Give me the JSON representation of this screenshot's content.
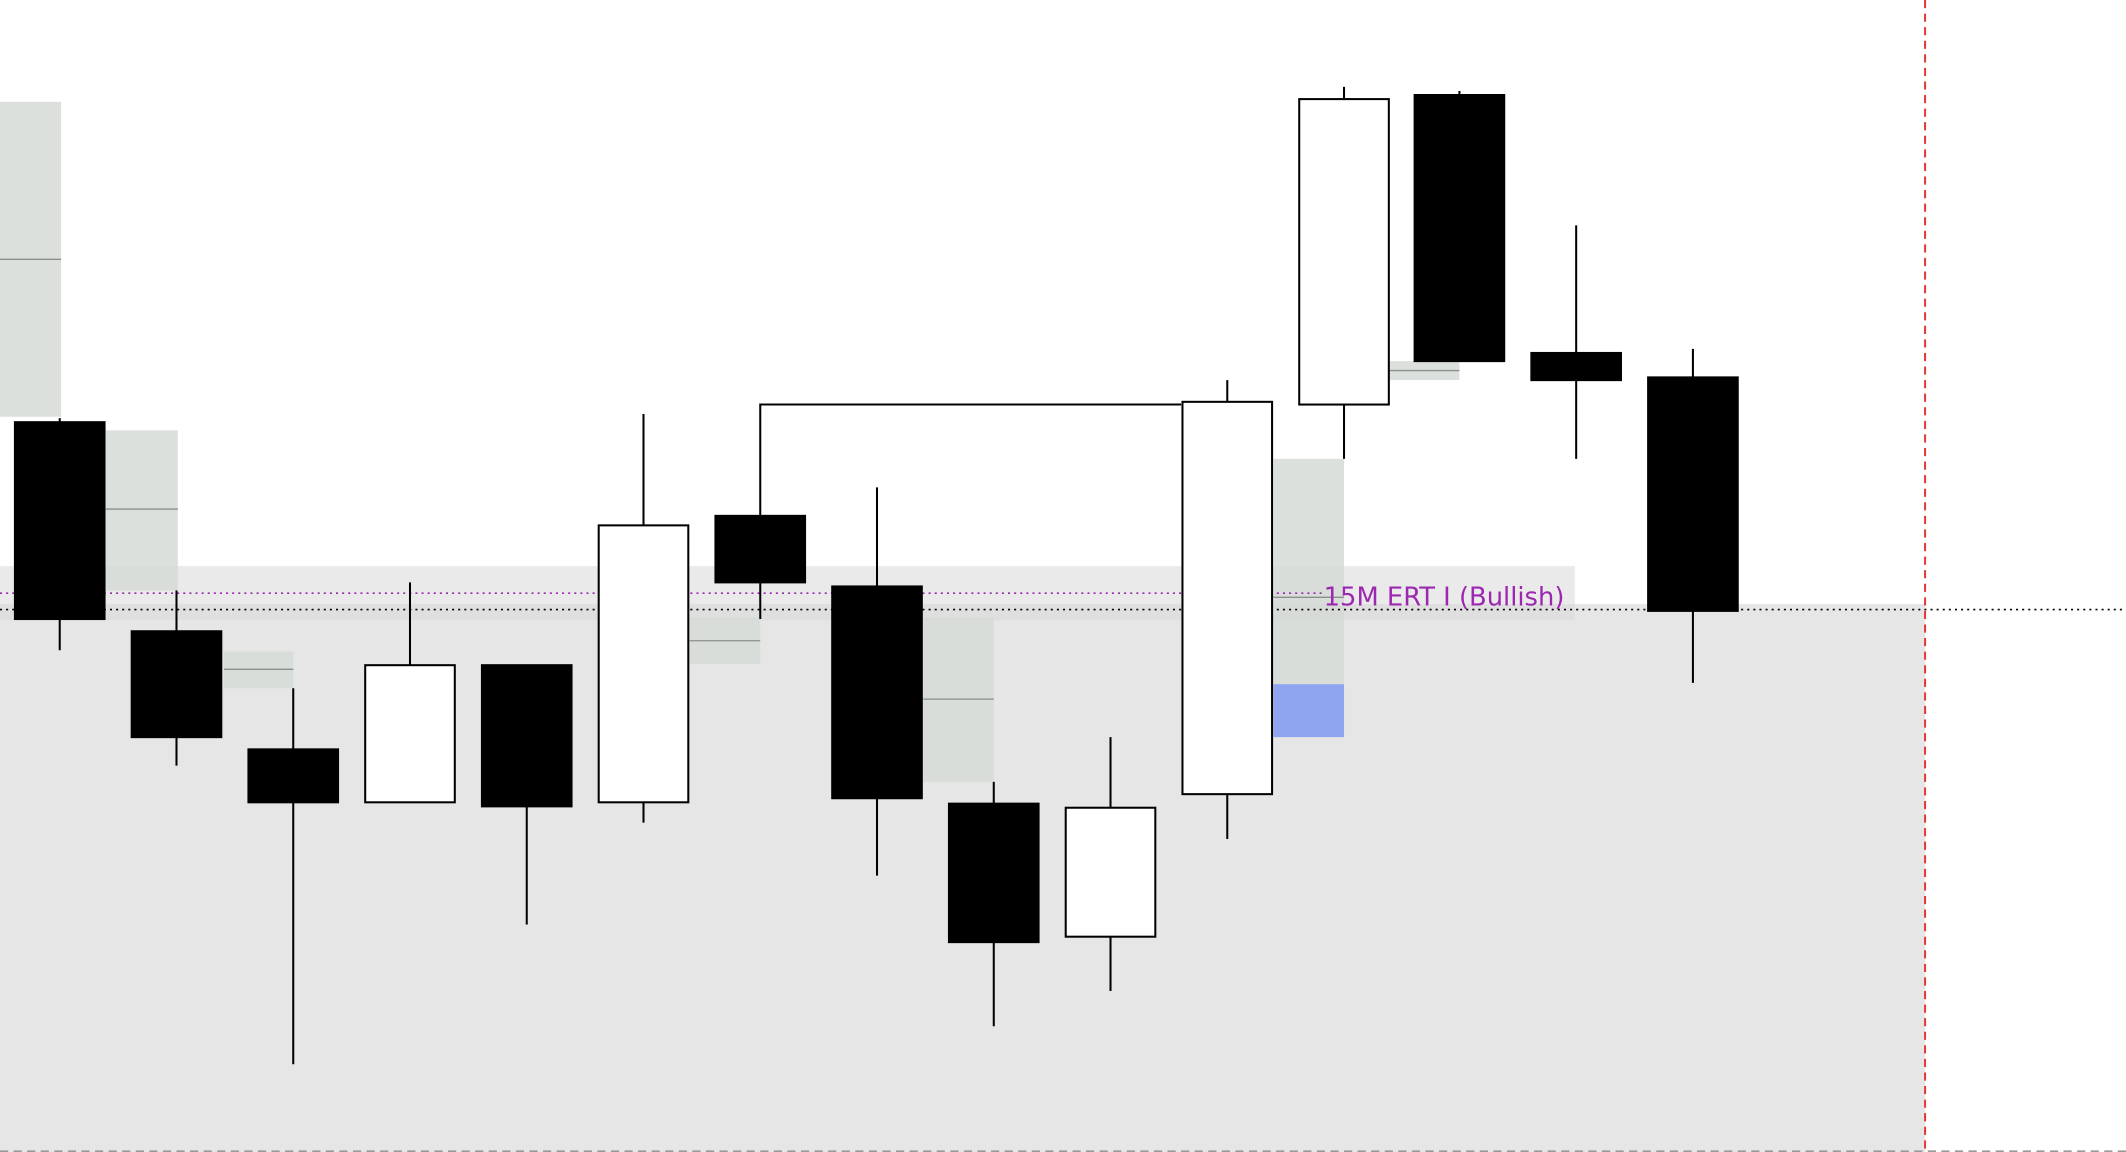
{
  "chart_data": {
    "type": "candlestick",
    "title": "",
    "xlabel": "",
    "ylabel": "",
    "grid": false,
    "annotations": [
      {
        "text": "15M ERT I (Bullish)",
        "color": "#9c27b0"
      }
    ],
    "candle_directions": [
      "bearish",
      "bearish",
      "bearish",
      "bullish",
      "bearish",
      "bullish",
      "bearish",
      "bearish",
      "bearish",
      "bullish",
      "bullish",
      "bullish",
      "bearish",
      "bearish",
      "bearish"
    ]
  },
  "colors": {
    "bearish_body": "#000000",
    "bullish_body": "#ffffff",
    "wick": "#000000",
    "gap_zone": "#d6dbd6",
    "gap_midline": "#8a8f8a",
    "highlight_zone": "#8fa5f0",
    "band": "#d9d9d9",
    "lower_region": "#e6e6e6",
    "label": "#9c27b0",
    "current_time_line": "#e53935",
    "bottom_border": "#999999"
  }
}
